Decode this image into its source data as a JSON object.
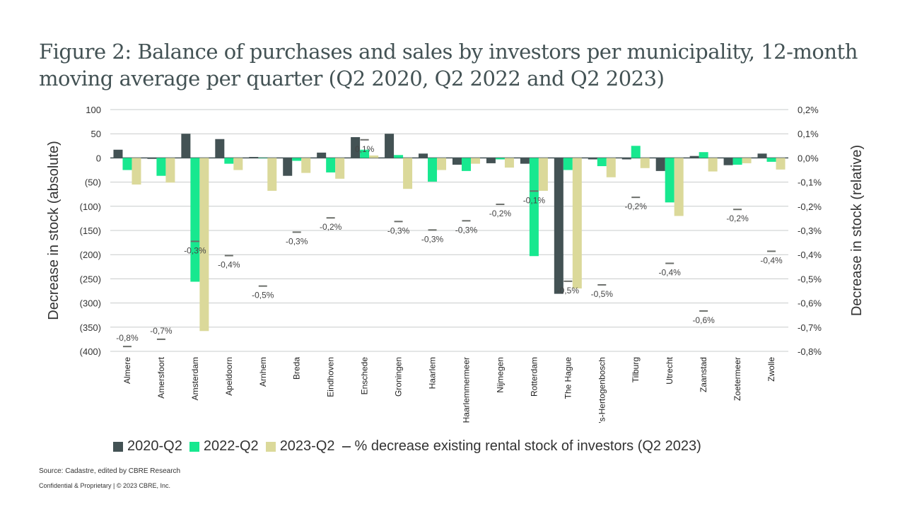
{
  "title": "Figure 2: Balance of purchases and sales by investors per municipality, 12-month moving average per quarter  (Q2 2020, Q2 2022 and Q2 2023)",
  "source": "Source: Cadastre, edited by CBRE Research",
  "confidential": "Confidential & Proprietary | © 2023 CBRE, Inc.",
  "colors": {
    "s2020": "#435254",
    "s2022": "#17E88F",
    "s2023": "#DBD99A",
    "marker": "#6b6e6a",
    "grid": "#c8cccc"
  },
  "chart_data": {
    "type": "bar",
    "title": "Balance of purchases and sales by investors per municipality",
    "ylabel": "Decrease in stock (absolute)",
    "y2label": "Decrease in stock (relative)",
    "ylim": [
      -400,
      100
    ],
    "y2lim": [
      -0.8,
      0.2
    ],
    "yticks": [
      "100",
      "50",
      "0",
      "(50)",
      "(100)",
      "(150)",
      "(200)",
      "(250)",
      "(300)",
      "(350)",
      "(400)"
    ],
    "y2ticks": [
      "0,2%",
      "0,1%",
      "0,0%",
      "-0,1%",
      "-0,2%",
      "-0,3%",
      "-0,4%",
      "-0,5%",
      "-0,6%",
      "-0,7%",
      "-0,8%"
    ],
    "categories": [
      "Almere",
      "Amersfoort",
      "Amsterdam",
      "Apeldoorn",
      "Arnhem",
      "Breda",
      "Eindhoven",
      "Enschede",
      "Groningen",
      "Haarlem",
      "Haarlemmermeer",
      "Nijmegen",
      "Rotterdam",
      "The Hague",
      "'s-Hertogenbosch",
      "Tilburg",
      "Utrecht",
      "Zaanstad",
      "Zoetermeer",
      "Zwolle"
    ],
    "series": [
      {
        "name": "2020-Q2",
        "values": [
          17,
          -2,
          50,
          39,
          2,
          -37,
          11,
          43,
          50,
          9,
          -14,
          -11,
          -12,
          -281,
          -3,
          -3,
          -27,
          4,
          -15,
          9
        ]
      },
      {
        "name": "2022-Q2",
        "values": [
          -25,
          -37,
          -256,
          -12,
          0,
          -6,
          -30,
          17,
          6,
          -49,
          -27,
          -3,
          -203,
          -25,
          -17,
          25,
          -92,
          12,
          -14,
          -8
        ]
      },
      {
        "name": "2023-Q2",
        "values": [
          -55,
          -51,
          -358,
          -25,
          -68,
          -31,
          -43,
          5,
          -64,
          -25,
          -12,
          -20,
          -68,
          -270,
          -40,
          -21,
          -120,
          -28,
          -11,
          -24
        ]
      }
    ],
    "marker_series": {
      "name": "% decrease existing rental stock of investors (Q2 2023)",
      "values": [
        -0.78,
        -0.75,
        -0.345,
        -0.404,
        -0.53,
        -0.307,
        -0.248,
        0.075,
        -0.263,
        -0.298,
        -0.26,
        -0.192,
        -0.137,
        -0.51,
        -0.525,
        -0.163,
        -0.436,
        -0.633,
        -0.213,
        -0.386
      ],
      "labels": [
        "-0,8%",
        "-0,7%",
        "-0,3%",
        "-0,4%",
        "-0,5%",
        "-0,3%",
        "-0,2%",
        "0,1%",
        "-0,3%",
        "-0,3%",
        "-0,3%",
        "-0,2%",
        "-0,1%",
        "-0,5%",
        "-0,5%",
        "-0,2%",
        "-0,4%",
        "-0,6%",
        "-0,2%",
        "-0,4%"
      ]
    },
    "legend": [
      "2020-Q2",
      "2022-Q2",
      "2023-Q2",
      "% decrease existing rental stock of investors (Q2 2023)"
    ],
    "legend_position": "bottom",
    "grid": true
  }
}
